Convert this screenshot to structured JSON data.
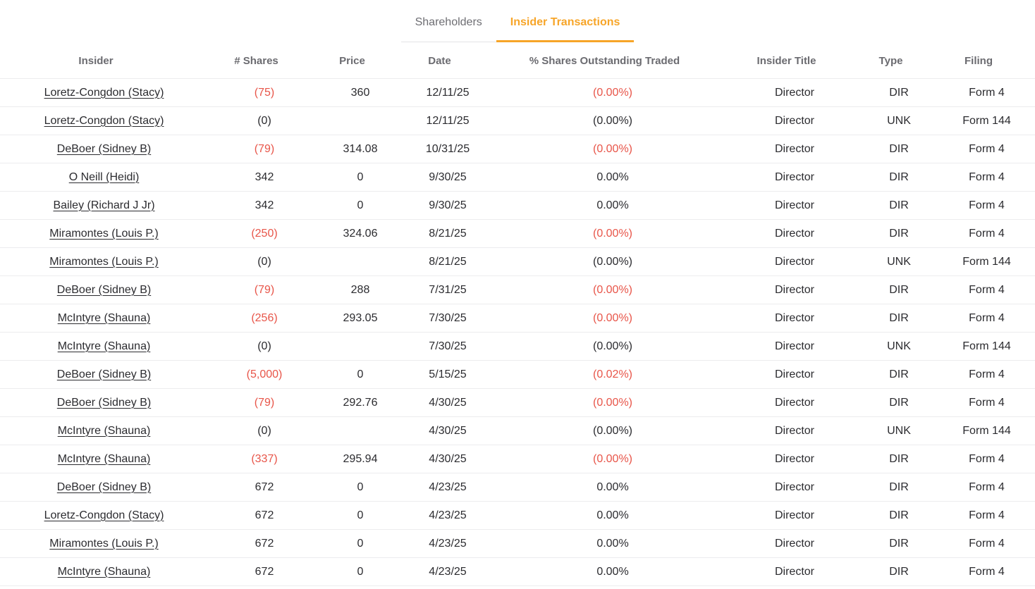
{
  "tabs": [
    {
      "label": "Shareholders",
      "active": false
    },
    {
      "label": "Insider Transactions",
      "active": true
    }
  ],
  "colors": {
    "accent_orange": "#f7a528",
    "negative_red": "#e85549"
  },
  "table": {
    "columns": [
      "Insider",
      "# Shares",
      "Price",
      "Date",
      "% Shares Outstanding Traded",
      "Insider Title",
      "Type",
      "Filing"
    ],
    "rows": [
      {
        "insider": "Loretz-Congdon (Stacy)",
        "shares": "(75)",
        "price": "360",
        "date": "12/11/25",
        "pct": "(0.00%)",
        "negative": true,
        "title": "Director",
        "type": "DIR",
        "filing": "Form 4"
      },
      {
        "insider": "Loretz-Congdon (Stacy)",
        "shares": "(0)",
        "price": "",
        "date": "12/11/25",
        "pct": "(0.00%)",
        "negative": false,
        "title": "Director",
        "type": "UNK",
        "filing": "Form 144"
      },
      {
        "insider": "DeBoer (Sidney B)",
        "shares": "(79)",
        "price": "314.08",
        "date": "10/31/25",
        "pct": "(0.00%)",
        "negative": true,
        "title": "Director",
        "type": "DIR",
        "filing": "Form 4"
      },
      {
        "insider": "O Neill (Heidi)",
        "shares": "342",
        "price": "0",
        "date": "9/30/25",
        "pct": "0.00%",
        "negative": false,
        "title": "Director",
        "type": "DIR",
        "filing": "Form 4"
      },
      {
        "insider": "Bailey (Richard J Jr)",
        "shares": "342",
        "price": "0",
        "date": "9/30/25",
        "pct": "0.00%",
        "negative": false,
        "title": "Director",
        "type": "DIR",
        "filing": "Form 4"
      },
      {
        "insider": "Miramontes (Louis P.)",
        "shares": "(250)",
        "price": "324.06",
        "date": "8/21/25",
        "pct": "(0.00%)",
        "negative": true,
        "title": "Director",
        "type": "DIR",
        "filing": "Form 4"
      },
      {
        "insider": "Miramontes (Louis P.)",
        "shares": "(0)",
        "price": "",
        "date": "8/21/25",
        "pct": "(0.00%)",
        "negative": false,
        "title": "Director",
        "type": "UNK",
        "filing": "Form 144"
      },
      {
        "insider": "DeBoer (Sidney B)",
        "shares": "(79)",
        "price": "288",
        "date": "7/31/25",
        "pct": "(0.00%)",
        "negative": true,
        "title": "Director",
        "type": "DIR",
        "filing": "Form 4"
      },
      {
        "insider": "McIntyre (Shauna)",
        "shares": "(256)",
        "price": "293.05",
        "date": "7/30/25",
        "pct": "(0.00%)",
        "negative": true,
        "title": "Director",
        "type": "DIR",
        "filing": "Form 4"
      },
      {
        "insider": "McIntyre (Shauna)",
        "shares": "(0)",
        "price": "",
        "date": "7/30/25",
        "pct": "(0.00%)",
        "negative": false,
        "title": "Director",
        "type": "UNK",
        "filing": "Form 144"
      },
      {
        "insider": "DeBoer (Sidney B)",
        "shares": "(5,000)",
        "price": "0",
        "date": "5/15/25",
        "pct": "(0.02%)",
        "negative": true,
        "title": "Director",
        "type": "DIR",
        "filing": "Form 4"
      },
      {
        "insider": "DeBoer (Sidney B)",
        "shares": "(79)",
        "price": "292.76",
        "date": "4/30/25",
        "pct": "(0.00%)",
        "negative": true,
        "title": "Director",
        "type": "DIR",
        "filing": "Form 4"
      },
      {
        "insider": "McIntyre (Shauna)",
        "shares": "(0)",
        "price": "",
        "date": "4/30/25",
        "pct": "(0.00%)",
        "negative": false,
        "title": "Director",
        "type": "UNK",
        "filing": "Form 144"
      },
      {
        "insider": "McIntyre (Shauna)",
        "shares": "(337)",
        "price": "295.94",
        "date": "4/30/25",
        "pct": "(0.00%)",
        "negative": true,
        "title": "Director",
        "type": "DIR",
        "filing": "Form 4"
      },
      {
        "insider": "DeBoer (Sidney B)",
        "shares": "672",
        "price": "0",
        "date": "4/23/25",
        "pct": "0.00%",
        "negative": false,
        "title": "Director",
        "type": "DIR",
        "filing": "Form 4"
      },
      {
        "insider": "Loretz-Congdon (Stacy)",
        "shares": "672",
        "price": "0",
        "date": "4/23/25",
        "pct": "0.00%",
        "negative": false,
        "title": "Director",
        "type": "DIR",
        "filing": "Form 4"
      },
      {
        "insider": "Miramontes (Louis P.)",
        "shares": "672",
        "price": "0",
        "date": "4/23/25",
        "pct": "0.00%",
        "negative": false,
        "title": "Director",
        "type": "DIR",
        "filing": "Form 4"
      },
      {
        "insider": "McIntyre (Shauna)",
        "shares": "672",
        "price": "0",
        "date": "4/23/25",
        "pct": "0.00%",
        "negative": false,
        "title": "Director",
        "type": "DIR",
        "filing": "Form 4"
      }
    ]
  }
}
